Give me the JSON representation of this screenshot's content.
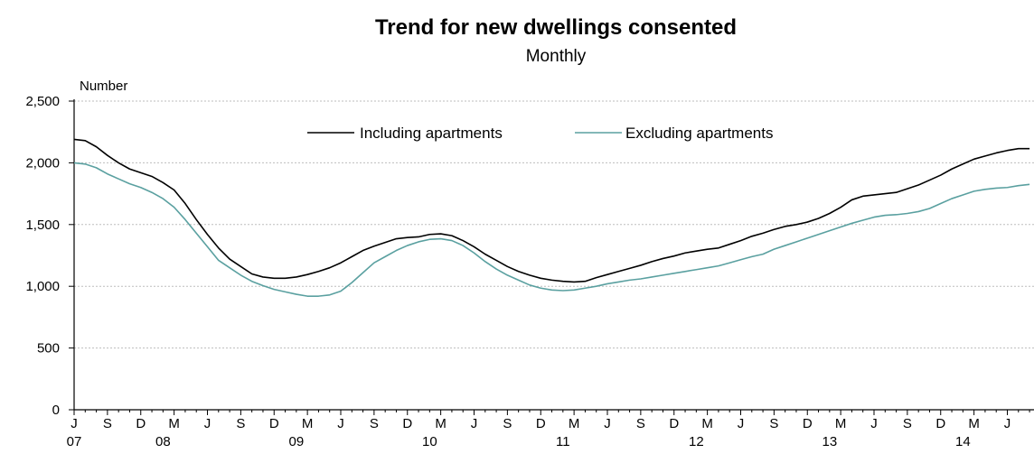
{
  "chart_data": {
    "type": "line",
    "title": "Trend for new dwellings consented",
    "subtitle": "Monthly",
    "ylabel": "Number",
    "xlabel": "",
    "ylim": [
      0,
      2500
    ],
    "yticks": [
      "0",
      "500",
      "1,000",
      "1,500",
      "2,000",
      "2,500"
    ],
    "ytick_values": [
      0,
      500,
      1000,
      1500,
      2000,
      2500
    ],
    "grid": true,
    "legend_placement": "top-center",
    "x_start": "2007-07",
    "month_labels": [
      "J",
      "S",
      "D",
      "M",
      "J",
      "S",
      "D",
      "M",
      "J",
      "S",
      "D",
      "M",
      "J",
      "S",
      "D",
      "M",
      "J",
      "S",
      "D",
      "M",
      "J",
      "S",
      "D",
      "M",
      "J",
      "S",
      "D",
      "M",
      "J"
    ],
    "year_labels": [
      {
        "label": "07",
        "month": "2007-07"
      },
      {
        "label": "08",
        "month": "2008-03"
      },
      {
        "label": "09",
        "month": "2009-03"
      },
      {
        "label": "10",
        "month": "2010-03"
      },
      {
        "label": "11",
        "month": "2011-03"
      },
      {
        "label": "12",
        "month": "2012-03"
      },
      {
        "label": "13",
        "month": "2013-03"
      },
      {
        "label": "14",
        "month": "2014-03"
      }
    ],
    "series": [
      {
        "name": "Including apartments",
        "color": "#000000",
        "values": [
          2190,
          2180,
          2130,
          2060,
          2000,
          1950,
          1920,
          1890,
          1840,
          1780,
          1670,
          1540,
          1420,
          1310,
          1220,
          1160,
          1100,
          1075,
          1065,
          1065,
          1075,
          1095,
          1120,
          1150,
          1190,
          1240,
          1290,
          1325,
          1355,
          1385,
          1395,
          1400,
          1420,
          1425,
          1410,
          1370,
          1320,
          1260,
          1210,
          1160,
          1120,
          1090,
          1065,
          1050,
          1040,
          1035,
          1040,
          1070,
          1095,
          1120,
          1145,
          1170,
          1200,
          1225,
          1245,
          1270,
          1285,
          1300,
          1310,
          1340,
          1370,
          1405,
          1430,
          1460,
          1485,
          1500,
          1520,
          1550,
          1590,
          1640,
          1700,
          1730,
          1740,
          1750,
          1760,
          1790,
          1820,
          1860,
          1900,
          1950,
          1990,
          2030,
          2055,
          2080,
          2100,
          2115,
          2115
        ]
      },
      {
        "name": "Excluding apartments",
        "color": "#5aa0a0",
        "values": [
          2000,
          1990,
          1960,
          1910,
          1870,
          1830,
          1800,
          1760,
          1710,
          1640,
          1540,
          1430,
          1320,
          1210,
          1150,
          1090,
          1040,
          1005,
          975,
          955,
          935,
          920,
          920,
          930,
          960,
          1030,
          1110,
          1190,
          1240,
          1290,
          1330,
          1360,
          1380,
          1385,
          1370,
          1330,
          1270,
          1200,
          1140,
          1090,
          1050,
          1010,
          985,
          970,
          965,
          970,
          985,
          1000,
          1020,
          1035,
          1050,
          1060,
          1075,
          1090,
          1105,
          1120,
          1135,
          1150,
          1165,
          1190,
          1215,
          1240,
          1260,
          1300,
          1330,
          1360,
          1390,
          1420,
          1450,
          1480,
          1510,
          1535,
          1560,
          1575,
          1580,
          1590,
          1605,
          1630,
          1670,
          1710,
          1740,
          1770,
          1785,
          1795,
          1800,
          1815,
          1825
        ]
      }
    ]
  }
}
